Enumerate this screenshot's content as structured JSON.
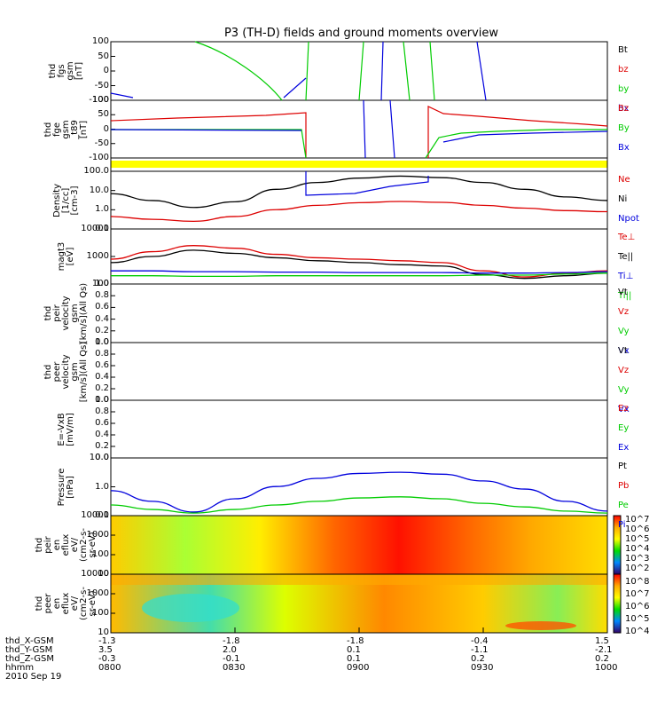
{
  "title": "P3 (TH-D) fields and ground moments overview",
  "colors": {
    "black": "#000000",
    "red": "#dd0000",
    "green": "#00cc00",
    "blue": "#0000dd",
    "yellow": "#ffff00"
  },
  "panels": [
    {
      "id": "fgs",
      "label": "thd\nfgs\ngsm\n[nT]",
      "legend": [
        [
          "Bt",
          "#000000"
        ],
        [
          "bz",
          "#dd0000"
        ],
        [
          "by",
          "#00cc00"
        ],
        [
          "bx",
          "#0000dd"
        ]
      ],
      "yticks": [
        "100",
        "50",
        "0",
        "-50",
        "-100"
      ]
    },
    {
      "id": "fge",
      "label": "thd\nfge\ngsm\n_t89\n[nT]",
      "legend": [
        [
          "Bz",
          "#dd0000"
        ],
        [
          "By",
          "#00cc00"
        ],
        [
          "Bx",
          "#0000dd"
        ]
      ],
      "yticks": [
        "100",
        "50",
        "0",
        "-50",
        "-100"
      ]
    },
    {
      "id": "flag",
      "label": "",
      "legend": [],
      "yticks": []
    },
    {
      "id": "density",
      "label": "Density\n[1/cc]\n[cm-3]",
      "legend": [
        [
          "Ne",
          "#dd0000"
        ],
        [
          "Ni",
          "#000000"
        ],
        [
          "Npot",
          "#0000dd"
        ]
      ],
      "yticks": [
        "100.0",
        "10.0",
        "1.0",
        "0.1"
      ]
    },
    {
      "id": "temp",
      "label": "magt3\n[eV]",
      "legend": [
        [
          "Te⊥",
          "#dd0000"
        ],
        [
          "Te||",
          "#000000"
        ],
        [
          "Ti⊥",
          "#0000dd"
        ],
        [
          "Ti||",
          "#00cc00"
        ]
      ],
      "yticks": [
        "10000",
        "1000",
        "100"
      ]
    },
    {
      "id": "peir_vel",
      "label": "thd\npeir\nvelocity\ngsm\n[km/s](All Qs)",
      "legend": [
        [
          "Vt",
          "#000000"
        ],
        [
          "Vz",
          "#dd0000"
        ],
        [
          "Vy",
          "#00cc00"
        ],
        [
          "Vx",
          "#0000dd"
        ]
      ],
      "yticks": [
        "1.0",
        "0.8",
        "0.6",
        "0.4",
        "0.2",
        "0.0"
      ]
    },
    {
      "id": "peer_vel",
      "label": "thd\npeer\nvelocity\ngsm\n[km/s](All Qs)",
      "legend": [
        [
          "Vt",
          "#000000"
        ],
        [
          "Vz",
          "#dd0000"
        ],
        [
          "Vy",
          "#00cc00"
        ],
        [
          "Vx",
          "#0000dd"
        ]
      ],
      "yticks": [
        "1.0",
        "0.8",
        "0.6",
        "0.4",
        "0.2",
        "0.0"
      ]
    },
    {
      "id": "efield",
      "label": "E=-VxB\n[mV/m]",
      "legend": [
        [
          "Ez",
          "#dd0000"
        ],
        [
          "Ey",
          "#00cc00"
        ],
        [
          "Ex",
          "#0000dd"
        ]
      ],
      "yticks": [
        "1.0",
        "0.8",
        "0.6",
        "0.4",
        "0.2",
        "0.0"
      ]
    },
    {
      "id": "pressure",
      "label": "Pressure\n[nPa]",
      "legend": [
        [
          "Pt",
          "#000000"
        ],
        [
          "Pb",
          "#dd0000"
        ],
        [
          "Pe",
          "#00cc00"
        ],
        [
          "Pi",
          "#0000dd"
        ]
      ],
      "yticks": [
        "10.0",
        "1.0",
        "0.1"
      ]
    },
    {
      "id": "peir_spec",
      "label": "thd\npeir\nen\neflux\neV/\n(cm2-s-\nsr-eV)",
      "legend": [],
      "yticks": [
        "10000",
        "1000",
        "100",
        "10"
      ]
    },
    {
      "id": "peer_spec",
      "label": "thd\npeer\nen\neflux\neV/\n(cm2-s-\nsr-eV)",
      "legend": [],
      "yticks": [
        "10000",
        "1000",
        "100",
        "10"
      ]
    }
  ],
  "colorbar1": [
    "10^7",
    "10^6",
    "10^5",
    "10^4",
    "10^3",
    "10^2"
  ],
  "colorbar2": [
    "10^8",
    "10^7",
    "10^6",
    "10^5",
    "10^4"
  ],
  "footer": {
    "rows": [
      {
        "label": "thd_X-GSM",
        "values": [
          "-1.3",
          "-1.8",
          "-1.8",
          "-0.4",
          "1.5"
        ]
      },
      {
        "label": "thd_Y-GSM",
        "values": [
          "3.5",
          "2.0",
          "0.1",
          "-1.1",
          "-2.1"
        ]
      },
      {
        "label": "thd_Z-GSM",
        "values": [
          "-0.3",
          "-0.1",
          "0.1",
          "0.2",
          "0.2"
        ]
      },
      {
        "label": "hhmm",
        "values": [
          "0800",
          "0830",
          "0900",
          "0930",
          "1000"
        ]
      }
    ],
    "date": "2010 Sep 19"
  },
  "chart_data": {
    "type": "line",
    "title": "P3 (TH-D) fields and ground moments overview",
    "x": [
      "0800",
      "0830",
      "0900",
      "0930",
      "1000"
    ],
    "density": {
      "Ni": [
        8,
        3,
        1.1,
        2.5,
        15,
        40,
        75,
        100,
        80,
        40,
        15,
        5,
        3
      ],
      "Ne": [
        0.3,
        0.2,
        0.15,
        0.3,
        0.8,
        1.5,
        2.2,
        2.6,
        2.3,
        1.5,
        1.0,
        0.7,
        0.6
      ]
    },
    "temperature": {
      "Te_perp": [
        800,
        1500,
        2500,
        2000,
        1200,
        900,
        800,
        700,
        600,
        300,
        180,
        250,
        300
      ],
      "Te_par": [
        600,
        1000,
        1700,
        1300,
        900,
        700,
        600,
        500,
        450,
        220,
        160,
        200,
        250
      ],
      "Ti_perp": [
        300,
        300,
        280,
        280,
        270,
        270,
        260,
        260,
        260,
        250,
        250,
        260,
        280
      ],
      "Ti_par": [
        200,
        200,
        190,
        190,
        200,
        200,
        200,
        200,
        200,
        210,
        210,
        230,
        250
      ]
    },
    "pressure": {
      "Pi": [
        0.5,
        0.15,
        0.045,
        0.2,
        0.8,
        2.0,
        3.5,
        4.0,
        3.2,
        1.5,
        0.6,
        0.15,
        0.05
      ],
      "Pe": [
        0.1,
        0.06,
        0.04,
        0.06,
        0.1,
        0.15,
        0.22,
        0.25,
        0.2,
        0.12,
        0.08,
        0.05,
        0.04
      ]
    }
  }
}
